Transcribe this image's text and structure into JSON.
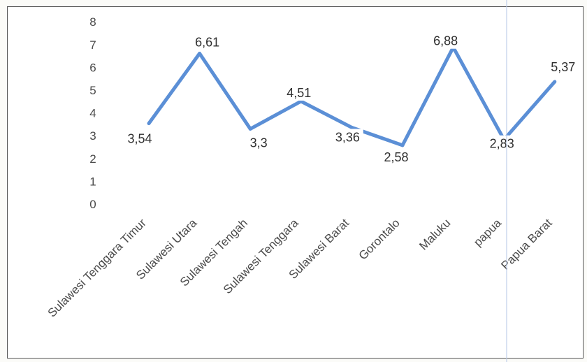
{
  "chart_data": {
    "type": "line",
    "title": "",
    "xlabel": "",
    "ylabel": "",
    "categories": [
      "Sulawesi Tenggara Timur",
      "Sulawesi Utara",
      "Sulawesi Tengah",
      "Sulawesi Tenggara",
      "Sulawesi Barat",
      "Gorontalo",
      "Maluku",
      "papua",
      "Papua Barat"
    ],
    "series": [
      {
        "values": [
          3.54,
          6.61,
          3.3,
          4.51,
          3.36,
          2.58,
          6.88,
          2.83,
          5.37
        ],
        "labels": [
          "3,54",
          "6,61",
          "3,3",
          "4,51",
          "3,36",
          "2,58",
          "6,88",
          "2,83",
          "5,37"
        ]
      }
    ],
    "ylim": [
      0,
      8
    ],
    "yticks": [
      0,
      1,
      2,
      3,
      4,
      5,
      6,
      7,
      8
    ],
    "grid": false,
    "legend": "none",
    "colors": {
      "line": "#5b8fd6",
      "text": "#2f2f2f",
      "axis_text": "#4a4a4a"
    }
  }
}
